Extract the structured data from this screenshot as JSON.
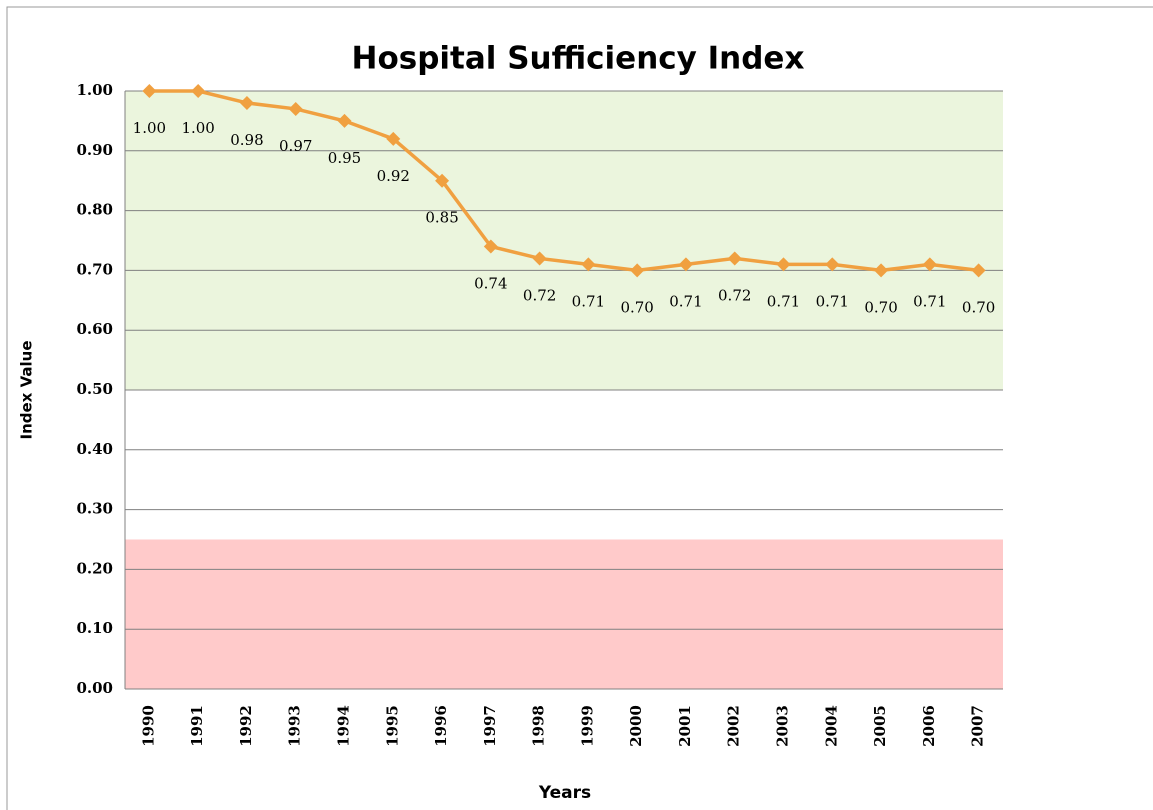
{
  "chart_data": {
    "type": "line",
    "title": "Hospital Sufficiency Index",
    "x_label": "Years",
    "y_label": "Index Value",
    "categories": [
      "1990",
      "1991",
      "1992",
      "1993",
      "1994",
      "1995",
      "1996",
      "1997",
      "1998",
      "1999",
      "2000",
      "2001",
      "2002",
      "2003",
      "2004",
      "2005",
      "2006",
      "2007"
    ],
    "series": [
      {
        "name": "Index Value",
        "color": "#f0a040",
        "values": [
          1.0,
          1.0,
          0.98,
          0.97,
          0.95,
          0.92,
          0.85,
          0.74,
          0.72,
          0.71,
          0.7,
          0.71,
          0.72,
          0.71,
          0.71,
          0.7,
          0.71,
          0.7
        ],
        "value_labels": [
          "1.00",
          "1.00",
          "0.98",
          "0.97",
          "0.95",
          "0.92",
          "0.85",
          "0.74",
          "0.72",
          "0.71",
          "0.70",
          "0.71",
          "0.72",
          "0.71",
          "0.71",
          "0.70",
          "0.71",
          "0.70"
        ]
      }
    ],
    "ylim": [
      0,
      1
    ],
    "yticks": [
      {
        "value": 0,
        "label": "0.00"
      },
      {
        "value": 0.1,
        "label": "0.10"
      },
      {
        "value": 0.2,
        "label": "0.20"
      },
      {
        "value": 0.3,
        "label": "0.30"
      },
      {
        "value": 0.4,
        "label": "0.40"
      },
      {
        "value": 0.5,
        "label": "0.50"
      },
      {
        "value": 0.6,
        "label": "0.60"
      },
      {
        "value": 0.7,
        "label": "0.70"
      },
      {
        "value": 0.8,
        "label": "0.80"
      },
      {
        "value": 0.9,
        "label": "0.90"
      },
      {
        "value": 1,
        "label": "1.00"
      }
    ],
    "bands": [
      {
        "from": 0.5,
        "to": 1,
        "color": "#ebf5dd"
      },
      {
        "from": 0,
        "to": 0.25,
        "color": "#ffcaca"
      }
    ],
    "grid": true
  }
}
